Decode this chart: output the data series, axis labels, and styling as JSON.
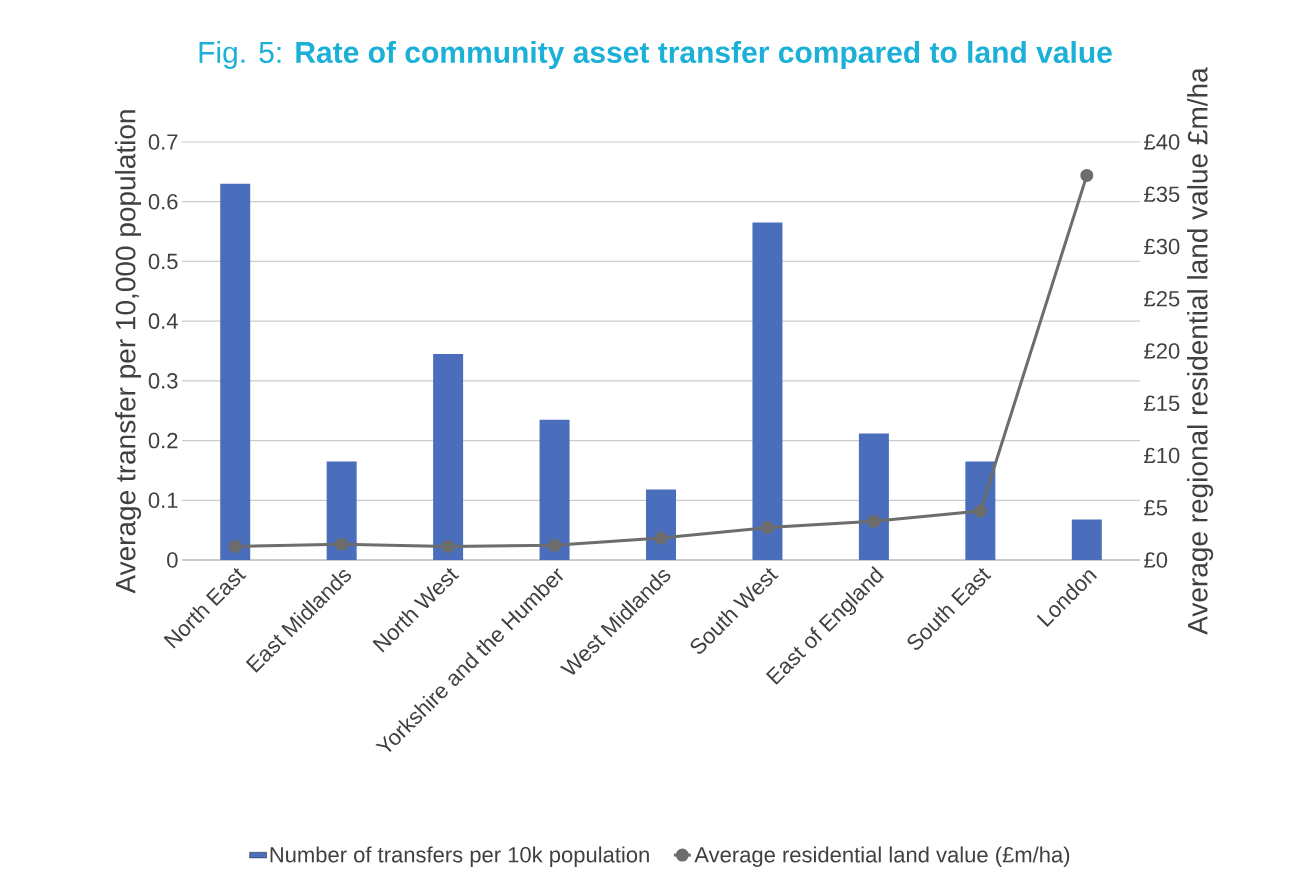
{
  "chart_data": {
    "type": "bar",
    "title": "Fig. 5: **Rate of community asset transfer compared to land value**",
    "ylabel": "Average transfer per 10,000 population",
    "y2label": "Average regional residential land value £m/ha",
    "categories": [
      "North East",
      "East Midlands",
      "North West",
      "Yorkshire and the Humber",
      "West Midlands",
      "South West",
      "East of England",
      "South East",
      "London"
    ],
    "series": [
      {
        "name": "Number of transfers per 10k population",
        "color": "#4a6ebb",
        "values": [
          0.63,
          0.165,
          0.345,
          0.235,
          0.118,
          0.565,
          0.212,
          0.165,
          0.068
        ]
      },
      {
        "name": "Average residential land value (£m/ha)",
        "type": "line",
        "axis": "y2",
        "color": "#6d6d6d",
        "marker": "circle",
        "line_style": "solid",
        "values": [
          1.3,
          1.5,
          1.3,
          1.4,
          2.1,
          3.1,
          3.7,
          4.7,
          36.8
        ]
      }
    ],
    "ylim": [
      0,
      0.7
    ],
    "yticks": [
      0,
      0.1,
      0.2,
      0.3,
      0.4,
      0.5,
      0.6,
      0.7
    ],
    "y2lim": [
      0,
      40
    ],
    "y2ticks": [
      {
        "value": 0,
        "label": "£0"
      },
      {
        "value": 5,
        "label": "£5"
      },
      {
        "value": 10,
        "label": "£10"
      },
      {
        "value": 15,
        "label": "£15"
      },
      {
        "value": 20,
        "label": "£20"
      },
      {
        "value": 25,
        "label": "£25"
      },
      {
        "value": 30,
        "label": "£30"
      },
      {
        "value": 35,
        "label": "£35"
      },
      {
        "value": 40,
        "label": "£40"
      }
    ],
    "grid": "y",
    "legend": "bottom"
  }
}
